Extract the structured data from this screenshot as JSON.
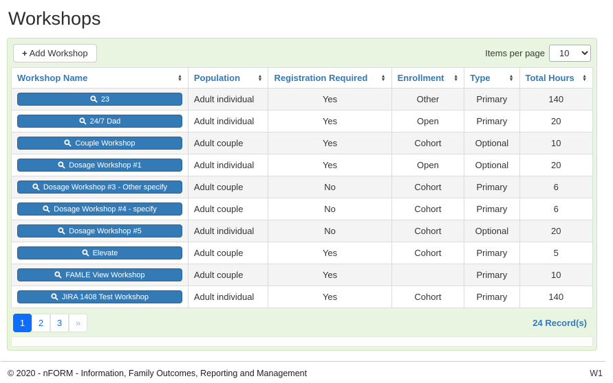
{
  "page": {
    "title": "Workshops"
  },
  "toolbar": {
    "add_button_label": "Add Workshop",
    "add_button_icon": "+",
    "items_per_page_label": "Items per page",
    "items_per_page_value": "10"
  },
  "table": {
    "columns": [
      "Workshop Name",
      "Population",
      "Registration Required",
      "Enrollment",
      "Type",
      "Total Hours"
    ],
    "rows": [
      {
        "name": "23",
        "population": "Adult individual",
        "registration": "Yes",
        "enrollment": "Other",
        "type": "Primary",
        "hours": "140"
      },
      {
        "name": "24/7 Dad",
        "population": "Adult individual",
        "registration": "Yes",
        "enrollment": "Open",
        "type": "Primary",
        "hours": "20"
      },
      {
        "name": "Couple Workshop",
        "population": "Adult couple",
        "registration": "Yes",
        "enrollment": "Cohort",
        "type": "Optional",
        "hours": "10"
      },
      {
        "name": "Dosage Workshop #1",
        "population": "Adult individual",
        "registration": "Yes",
        "enrollment": "Open",
        "type": "Optional",
        "hours": "20"
      },
      {
        "name": "Dosage Workshop #3 - Other specify",
        "population": "Adult couple",
        "registration": "No",
        "enrollment": "Cohort",
        "type": "Primary",
        "hours": "6"
      },
      {
        "name": "Dosage Workshop #4 - specify",
        "population": "Adult couple",
        "registration": "No",
        "enrollment": "Cohort",
        "type": "Primary",
        "hours": "6"
      },
      {
        "name": "Dosage Workshop #5",
        "population": "Adult individual",
        "registration": "No",
        "enrollment": "Cohort",
        "type": "Optional",
        "hours": "20"
      },
      {
        "name": "Elevate",
        "population": "Adult couple",
        "registration": "Yes",
        "enrollment": "Cohort",
        "type": "Primary",
        "hours": "5"
      },
      {
        "name": "FAMLE View Workshop",
        "population": "Adult couple",
        "registration": "Yes",
        "enrollment": "",
        "type": "Primary",
        "hours": "10"
      },
      {
        "name": "JIRA 1408 Test Workshop",
        "population": "Adult individual",
        "registration": "Yes",
        "enrollment": "Cohort",
        "type": "Primary",
        "hours": "140"
      }
    ]
  },
  "pagination": {
    "pages": [
      "1",
      "2",
      "3",
      "»"
    ],
    "active": "1",
    "records_label": "24 Record(s)"
  },
  "footer": {
    "copyright": "© 2020 - nFORM - Information, Family Outcomes, Reporting and Management",
    "version": "W1"
  },
  "colors": {
    "header_link_blue": "#337ab7",
    "workshop_button_blue": "#337ab7",
    "active_page_blue": "#0d6efd",
    "panel_green": "#e9f4e1"
  }
}
